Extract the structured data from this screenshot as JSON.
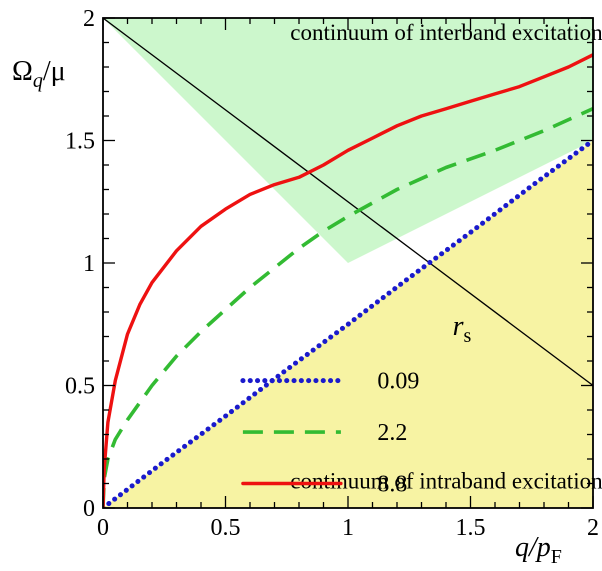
{
  "chart_data": {
    "type": "line",
    "xlabel": {
      "main": "q/p",
      "sub": "F"
    },
    "ylabel": {
      "main": "Ω",
      "sub": "q",
      "tail": "/μ"
    },
    "xlim": [
      0,
      2
    ],
    "ylim": [
      0,
      2
    ],
    "xticks": [
      0,
      0.5,
      1,
      1.5,
      2
    ],
    "xtick_labels": [
      "0",
      "0.5",
      "1",
      "1.5",
      "2"
    ],
    "yticks": [
      0,
      0.5,
      1,
      1.5,
      2
    ],
    "ytick_labels": [
      "0",
      "0.5",
      "1",
      "1.5",
      "2"
    ],
    "grid": false,
    "regions": [
      {
        "name": "interband",
        "label": "continuum of interband excitations",
        "color": "#ccf7cc",
        "boundary": "Omega >= max(2 - q, q)"
      },
      {
        "name": "intraband",
        "label": "continuum of intraband excitations",
        "color": "#f7f3a3",
        "boundary": "Omega <= q"
      }
    ],
    "guide_lines": [
      {
        "name": "interband-edge",
        "x": [
          0,
          2
        ],
        "y": [
          2,
          0.5
        ],
        "color": "#000000"
      }
    ],
    "legend": {
      "title_main": "r",
      "title_sub": "s",
      "placement": "lower-right"
    },
    "series": [
      {
        "name": "0.09",
        "color": "#1a1acc",
        "style": "dotted",
        "x": [
          0,
          0.25,
          0.5,
          0.75,
          1.0,
          1.25,
          1.5,
          1.75,
          2.0
        ],
        "y": [
          0,
          0.19,
          0.375,
          0.565,
          0.75,
          0.94,
          1.125,
          1.315,
          1.5
        ]
      },
      {
        "name": "2.2",
        "color": "#33bb33",
        "style": "dashed",
        "x": [
          0,
          0.005,
          0.02,
          0.05,
          0.1,
          0.2,
          0.3,
          0.4,
          0.5,
          0.6,
          0.7,
          0.8,
          0.9,
          1.0,
          1.2,
          1.4,
          1.6,
          1.8,
          2.0
        ],
        "y": [
          0,
          0.12,
          0.2,
          0.28,
          0.36,
          0.5,
          0.62,
          0.72,
          0.81,
          0.9,
          0.98,
          1.06,
          1.13,
          1.19,
          1.3,
          1.39,
          1.46,
          1.54,
          1.63
        ]
      },
      {
        "name": "8.8",
        "color": "#ee1111",
        "style": "solid",
        "x": [
          0,
          0.005,
          0.02,
          0.05,
          0.1,
          0.15,
          0.2,
          0.3,
          0.4,
          0.5,
          0.6,
          0.7,
          0.8,
          0.9,
          1.0,
          1.1,
          1.2,
          1.3,
          1.4,
          1.5,
          1.6,
          1.7,
          1.8,
          1.9,
          2.0
        ],
        "y": [
          0,
          0.16,
          0.35,
          0.52,
          0.71,
          0.83,
          0.92,
          1.05,
          1.15,
          1.22,
          1.28,
          1.32,
          1.35,
          1.4,
          1.46,
          1.51,
          1.56,
          1.6,
          1.63,
          1.66,
          1.69,
          1.72,
          1.76,
          1.8,
          1.85
        ]
      }
    ]
  }
}
